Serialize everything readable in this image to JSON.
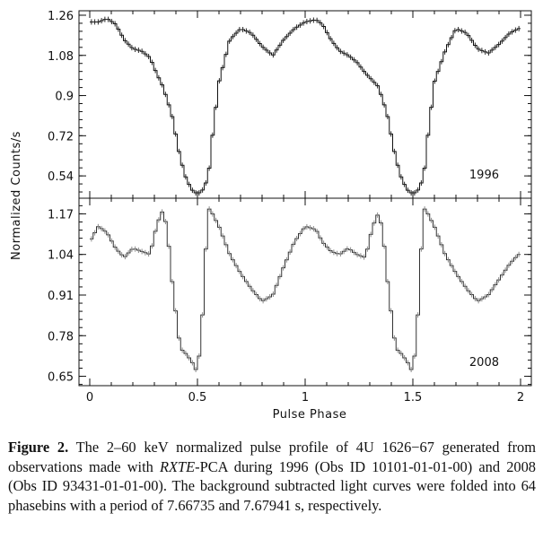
{
  "chart_data": [
    {
      "type": "line",
      "panel_label": "1996",
      "xlim": [
        -0.05,
        2.05
      ],
      "ylim": [
        0.44,
        1.28
      ],
      "yticks": [
        0.54,
        0.72,
        0.9,
        1.08,
        1.26
      ],
      "ytick_labels": [
        "0.54",
        "0.72",
        "0.9",
        "1.08",
        "1.26"
      ],
      "x": [
        0.0,
        0.04,
        0.08,
        0.12,
        0.16,
        0.2,
        0.24,
        0.28,
        0.31,
        0.34,
        0.38,
        0.42,
        0.45,
        0.48,
        0.5,
        0.52,
        0.55,
        0.57,
        0.6,
        0.65,
        0.7,
        0.75,
        0.8,
        0.85,
        0.9,
        0.95,
        1.0,
        1.05,
        1.08,
        1.12,
        1.16,
        1.2,
        1.24,
        1.28,
        1.31,
        1.34,
        1.38,
        1.42,
        1.45,
        1.48,
        1.5,
        1.52,
        1.55,
        1.57,
        1.6,
        1.65,
        1.7,
        1.75,
        1.8,
        1.85,
        1.9,
        1.95,
        1.99
      ],
      "y": [
        1.23,
        1.23,
        1.245,
        1.22,
        1.15,
        1.11,
        1.1,
        1.07,
        1.0,
        0.94,
        0.82,
        0.62,
        0.52,
        0.47,
        0.46,
        0.47,
        0.53,
        0.72,
        0.96,
        1.15,
        1.2,
        1.18,
        1.12,
        1.08,
        1.15,
        1.2,
        1.23,
        1.24,
        1.22,
        1.15,
        1.1,
        1.08,
        1.05,
        1.0,
        0.97,
        0.94,
        0.82,
        0.62,
        0.52,
        0.47,
        0.46,
        0.47,
        0.53,
        0.72,
        0.96,
        1.1,
        1.2,
        1.18,
        1.11,
        1.09,
        1.13,
        1.18,
        1.2
      ]
    },
    {
      "type": "line",
      "panel_label": "2008",
      "xlim": [
        -0.05,
        2.05
      ],
      "ylim": [
        0.62,
        1.22
      ],
      "yticks": [
        0.65,
        0.78,
        0.91,
        1.04,
        1.17
      ],
      "ytick_labels": [
        "0.65",
        "0.78",
        "0.91",
        "1.04",
        "1.17"
      ],
      "xticks": [
        0,
        0.5,
        1,
        1.5,
        2
      ],
      "xtick_labels": [
        "0",
        "0.5",
        "1",
        "1.5",
        "2"
      ],
      "xlabel": "Pulse Phase",
      "x": [
        0.0,
        0.04,
        0.08,
        0.12,
        0.16,
        0.2,
        0.24,
        0.28,
        0.31,
        0.33,
        0.34,
        0.36,
        0.38,
        0.4,
        0.42,
        0.45,
        0.48,
        0.5,
        0.52,
        0.54,
        0.55,
        0.57,
        0.6,
        0.65,
        0.7,
        0.75,
        0.8,
        0.85,
        0.9,
        0.95,
        1.0,
        1.05,
        1.08,
        1.12,
        1.16,
        1.2,
        1.24,
        1.28,
        1.31,
        1.33,
        1.34,
        1.36,
        1.38,
        1.4,
        1.42,
        1.45,
        1.48,
        1.5,
        1.52,
        1.54,
        1.55,
        1.57,
        1.6,
        1.65,
        1.7,
        1.75,
        1.8,
        1.85,
        1.9,
        1.95,
        1.99
      ],
      "y": [
        1.08,
        1.13,
        1.11,
        1.06,
        1.03,
        1.06,
        1.05,
        1.04,
        1.13,
        1.17,
        1.18,
        1.12,
        0.97,
        0.85,
        0.74,
        0.72,
        0.69,
        0.66,
        0.8,
        1.07,
        1.19,
        1.17,
        1.13,
        1.04,
        0.98,
        0.93,
        0.89,
        0.91,
        1.0,
        1.08,
        1.13,
        1.12,
        1.08,
        1.05,
        1.04,
        1.06,
        1.04,
        1.03,
        1.12,
        1.16,
        1.17,
        1.12,
        0.97,
        0.85,
        0.74,
        0.72,
        0.69,
        0.66,
        0.8,
        1.07,
        1.19,
        1.17,
        1.13,
        1.04,
        0.98,
        0.93,
        0.89,
        0.91,
        0.96,
        1.01,
        1.04
      ]
    }
  ],
  "shared_ylabel": "Normalized Counts/s",
  "caption": {
    "label": "Figure 2.",
    "text1": " The 2–60 keV normalized pulse profile of 4U 1626−67 generated from observations made with ",
    "instrument": "RXTE",
    "text2": "-PCA during 1996 (Obs ID 10101-01-01-00) and 2008 (Obs ID 93431-01-01-00). The background subtracted light curves were folded into 64 phasebins with a period of 7.66735 and 7.67941 s, respectively."
  }
}
